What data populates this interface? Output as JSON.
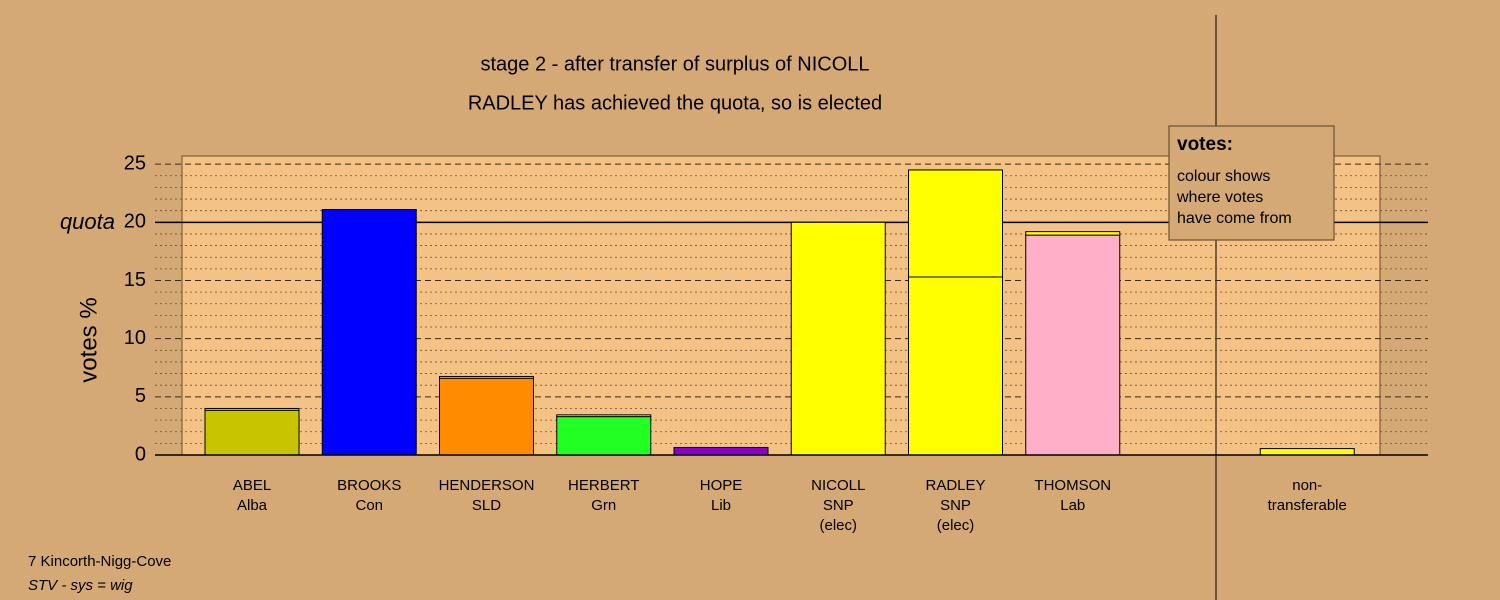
{
  "chart_data": {
    "type": "stacked_bar",
    "title": "stage 2 - after transfer of surplus of NICOLL",
    "subtitle": "RADLEY has achieved the quota, so is elected",
    "y_label": "votes %",
    "categories": [
      [
        "ABEL",
        "Alba"
      ],
      [
        "BROOKS",
        "Con"
      ],
      [
        "HENDERSON",
        "SLD"
      ],
      [
        "HERBERT",
        "Grn"
      ],
      [
        "HOPE",
        "Lib"
      ],
      [
        "NICOLL",
        "SNP",
        "(elec)"
      ],
      [
        "RADLEY",
        "SNP",
        "(elec)"
      ],
      [
        "THOMSON",
        "Lab"
      ],
      null,
      [
        "non-",
        "transferable"
      ]
    ],
    "series": [
      {
        "colors": [
          "#c8c400",
          "#0000ff",
          "#ff8c00",
          "#22ff22",
          "#8800cc",
          "#ffff00",
          "#ffff00",
          "#ffb0c8",
          null,
          "#ffff00"
        ],
        "values": [
          3.85,
          21.1,
          6.6,
          3.3,
          0.65,
          20.0,
          15.3,
          18.9,
          null,
          0.55
        ]
      },
      {
        "color": "#ffff00",
        "values": [
          0.15,
          null,
          0.15,
          0.15,
          null,
          null,
          9.2,
          0.3,
          null,
          null
        ]
      }
    ],
    "quota": {
      "label": "quota",
      "value": 20
    },
    "ylim": [
      0,
      25.7
    ],
    "yticks": [
      0,
      5,
      10,
      15,
      20,
      25
    ],
    "minor_grid_step": 1,
    "grid": true,
    "legend": {
      "title": "votes:",
      "lines": [
        "colour shows",
        "where votes",
        "have come from"
      ]
    },
    "footer": [
      "7 Kincorth-Nigg-Cove",
      "STV - sys = wig"
    ]
  }
}
